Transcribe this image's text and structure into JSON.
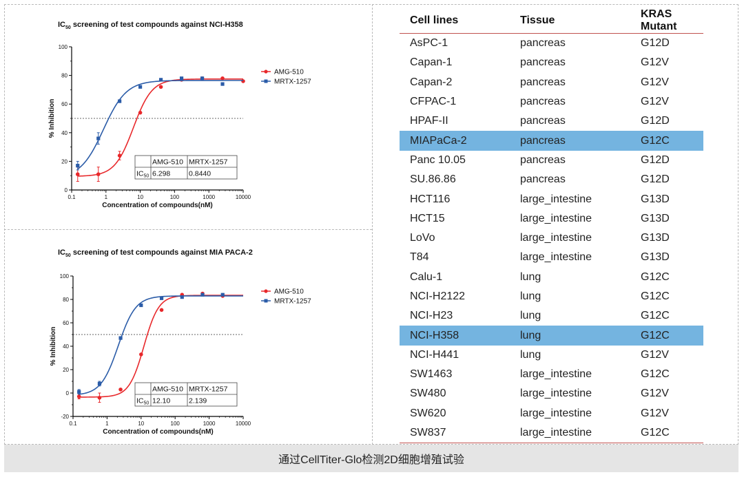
{
  "footer": {
    "caption": "通过CellTiter-Glo检测2D细胞增殖试验"
  },
  "chart_data": [
    {
      "type": "scatter",
      "title_prefix": "IC",
      "title_sub": "50",
      "title_rest": " screening of test compounds against NCI-H358",
      "xlabel": "Concentration of compounds(nM)",
      "ylabel": "% Inhibition",
      "x_scale": "log",
      "xlim": [
        0.1,
        10000
      ],
      "ylim": [
        0,
        100
      ],
      "x_ticks": [
        0.1,
        1,
        10,
        100,
        1000,
        10000
      ],
      "x_tick_labels": [
        "0.1",
        "1",
        "10",
        "100",
        "1000",
        "10000"
      ],
      "y_ticks": [
        0,
        20,
        40,
        60,
        80,
        100
      ],
      "y_tick_labels": [
        "0",
        "20",
        "40",
        "60",
        "80",
        "100"
      ],
      "reference_line_y": 50,
      "legend": {
        "placement": "right"
      },
      "series": [
        {
          "name": "AMG-510",
          "color": "#e8282b",
          "marker": "circle",
          "x": [
            0.15,
            0.6,
            2.5,
            10,
            40,
            160,
            640,
            2500,
            10000
          ],
          "y": [
            11,
            11,
            24,
            54,
            72,
            77,
            78,
            78,
            76
          ],
          "err": [
            5,
            5,
            3,
            1,
            1,
            1,
            1,
            1,
            1
          ],
          "fit": {
            "bottom": 9.5,
            "top": 77.5,
            "ic50": 6.298,
            "hill": 1.6
          }
        },
        {
          "name": "MRTX-1257",
          "color": "#2b5ca8",
          "marker": "square",
          "x": [
            0.15,
            0.6,
            2.5,
            10,
            40,
            160,
            640,
            2500
          ],
          "y": [
            17,
            36,
            62,
            72,
            77,
            78,
            78,
            74
          ],
          "err": [
            3,
            4,
            1,
            1,
            1,
            1,
            1,
            1
          ],
          "fit": {
            "bottom": 8,
            "top": 76.5,
            "ic50": 0.844,
            "hill": 1.3
          }
        }
      ],
      "ic50_table": {
        "headers": [
          "",
          "AMG-510",
          "MRTX-1257"
        ],
        "row_label_prefix": "IC",
        "row_label_sub": "50",
        "values": [
          "6.298",
          "0.8440"
        ]
      }
    },
    {
      "type": "scatter",
      "title_prefix": "IC",
      "title_sub": "50",
      "title_rest": " screening of test compounds against MIA PACA-2",
      "xlabel": "Concentration of compounds(nM)",
      "ylabel": "% Inhibition",
      "x_scale": "log",
      "xlim": [
        0.1,
        10000
      ],
      "ylim": [
        -20,
        100
      ],
      "x_ticks": [
        0.1,
        1,
        10,
        100,
        1000,
        10000
      ],
      "x_tick_labels": [
        "0.1",
        "1",
        "10",
        "100",
        "1000",
        "10000"
      ],
      "y_ticks": [
        -20,
        0,
        20,
        40,
        60,
        80,
        100
      ],
      "y_tick_labels": [
        "-20",
        "0",
        "20",
        "40",
        "60",
        "80",
        "100"
      ],
      "reference_line_y": 50,
      "legend": {
        "placement": "right"
      },
      "series": [
        {
          "name": "AMG-510",
          "color": "#e8282b",
          "marker": "circle",
          "x": [
            0.15,
            0.6,
            2.5,
            10,
            40,
            160,
            640,
            2500
          ],
          "y": [
            -3,
            -4,
            3,
            33,
            71,
            84,
            85,
            83
          ],
          "err": [
            2,
            4,
            1,
            1,
            1,
            1,
            1,
            1
          ],
          "fit": {
            "bottom": -3.5,
            "top": 83.5,
            "ic50": 12.1,
            "hill": 2.0
          }
        },
        {
          "name": "MRTX-1257",
          "color": "#2b5ca8",
          "marker": "square",
          "x": [
            0.15,
            0.6,
            2.5,
            10,
            40,
            160,
            640,
            2500
          ],
          "y": [
            1,
            8,
            47,
            75,
            81,
            82,
            84,
            84
          ],
          "err": [
            2,
            2,
            1,
            1,
            1,
            1,
            1,
            1
          ],
          "fit": {
            "bottom": -2,
            "top": 83,
            "ic50": 2.139,
            "hill": 1.7
          }
        }
      ],
      "ic50_table": {
        "headers": [
          "",
          "AMG-510",
          "MRTX-1257"
        ],
        "row_label_prefix": "IC",
        "row_label_sub": "50",
        "values": [
          "12.10",
          "2.139"
        ]
      }
    },
    {
      "type": "table",
      "columns": [
        "Cell lines",
        "Tissue",
        "KRAS Mutant"
      ],
      "highlight_color": "#74b4e0",
      "rows": [
        {
          "cells": [
            "AsPC-1",
            "pancreas",
            "G12D"
          ],
          "highlight": false
        },
        {
          "cells": [
            "Capan-1",
            "pancreas",
            "G12V"
          ],
          "highlight": false
        },
        {
          "cells": [
            "Capan-2",
            "pancreas",
            "G12V"
          ],
          "highlight": false
        },
        {
          "cells": [
            "CFPAC-1",
            "pancreas",
            "G12V"
          ],
          "highlight": false
        },
        {
          "cells": [
            "HPAF-II",
            "pancreas",
            "G12D"
          ],
          "highlight": false
        },
        {
          "cells": [
            "MIAPaCa-2",
            "pancreas",
            "G12C"
          ],
          "highlight": true
        },
        {
          "cells": [
            "Panc 10.05",
            "pancreas",
            "G12D"
          ],
          "highlight": false
        },
        {
          "cells": [
            "SU.86.86",
            "pancreas",
            "G12D"
          ],
          "highlight": false
        },
        {
          "cells": [
            "HCT116",
            "large_intestine",
            "G13D"
          ],
          "highlight": false
        },
        {
          "cells": [
            "HCT15",
            "large_intestine",
            "G13D"
          ],
          "highlight": false
        },
        {
          "cells": [
            "LoVo",
            "large_intestine",
            "G13D"
          ],
          "highlight": false
        },
        {
          "cells": [
            "T84",
            "large_intestine",
            "G13D"
          ],
          "highlight": false
        },
        {
          "cells": [
            "Calu-1",
            "lung",
            "G12C"
          ],
          "highlight": false
        },
        {
          "cells": [
            "NCI-H2122",
            "lung",
            "G12C"
          ],
          "highlight": false
        },
        {
          "cells": [
            "NCI-H23",
            "lung",
            "G12C"
          ],
          "highlight": false
        },
        {
          "cells": [
            "NCI-H358",
            "lung",
            "G12C"
          ],
          "highlight": true
        },
        {
          "cells": [
            "NCI-H441",
            "lung",
            "G12V"
          ],
          "highlight": false
        },
        {
          "cells": [
            "SW1463",
            "large_intestine",
            "G12C"
          ],
          "highlight": false
        },
        {
          "cells": [
            "SW480",
            "large_intestine",
            "G12V"
          ],
          "highlight": false
        },
        {
          "cells": [
            "SW620",
            "large_intestine",
            "G12V"
          ],
          "highlight": false
        },
        {
          "cells": [
            "SW837",
            "large_intestine",
            "G12C"
          ],
          "highlight": false
        }
      ]
    }
  ]
}
